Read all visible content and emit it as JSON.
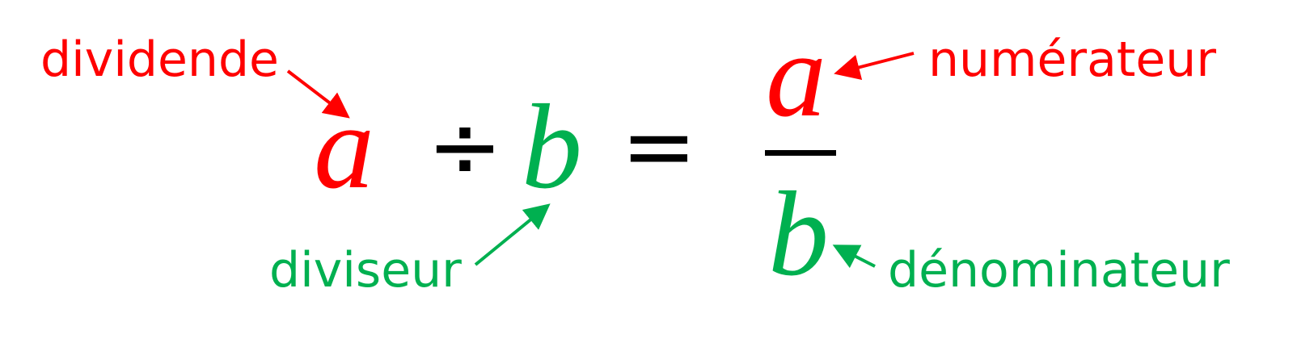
{
  "labels": {
    "dividend": "dividende",
    "divisor": "diviseur",
    "numerator": "numérateur",
    "denominator": "dénominateur"
  },
  "equation": {
    "left_dividend": "a",
    "division_sign": "÷",
    "left_divisor": "b",
    "equals_sign": "=",
    "numerator": "a",
    "denominator": "b"
  },
  "colors": {
    "dividend": "#ff0000",
    "divisor": "#00b050",
    "operators": "#000000"
  }
}
